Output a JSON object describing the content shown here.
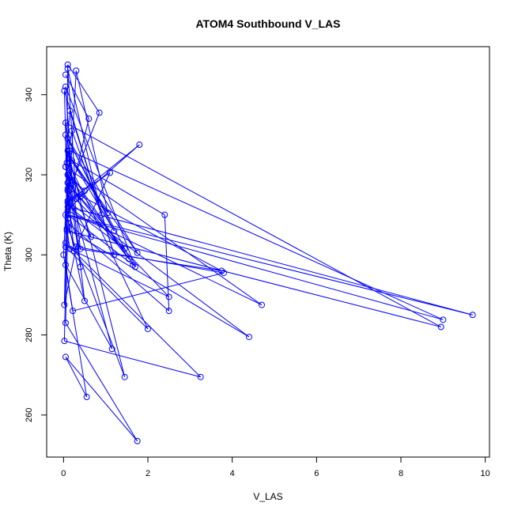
{
  "chart_data": {
    "type": "line",
    "title": "ATOM4 Southbound V_LAS",
    "xlabel": "V_LAS",
    "ylabel": "Theta (K)",
    "xlim": [
      -0.4,
      10.1
    ],
    "ylim": [
      249.5,
      352.0
    ],
    "xticks": [
      0,
      2,
      4,
      6,
      8,
      10
    ],
    "yticks": [
      260,
      280,
      300,
      320,
      340
    ],
    "grid": false,
    "line_and_points": true,
    "color": "#0000ff",
    "points": [
      {
        "x": 0.05,
        "y": 345.0
      },
      {
        "x": 0.6,
        "y": 334.0
      },
      {
        "x": 0.1,
        "y": 312.0
      },
      {
        "x": 0.02,
        "y": 341.0
      },
      {
        "x": 1.2,
        "y": 300.0
      },
      {
        "x": 0.15,
        "y": 336.0
      },
      {
        "x": 0.05,
        "y": 322.0
      },
      {
        "x": 0.3,
        "y": 314.0
      },
      {
        "x": 0.1,
        "y": 346.5
      },
      {
        "x": 0.9,
        "y": 310.0
      },
      {
        "x": 0.2,
        "y": 331.0
      },
      {
        "x": 0.08,
        "y": 323.0
      },
      {
        "x": 0.1,
        "y": 347.5
      },
      {
        "x": 0.85,
        "y": 335.5
      },
      {
        "x": 0.2,
        "y": 318.0
      },
      {
        "x": 0.05,
        "y": 342.0
      },
      {
        "x": 1.7,
        "y": 297.0
      },
      {
        "x": 0.1,
        "y": 320.0
      },
      {
        "x": 0.5,
        "y": 316.0
      },
      {
        "x": 0.05,
        "y": 310.0
      },
      {
        "x": 9.0,
        "y": 283.8
      },
      {
        "x": 0.15,
        "y": 326.0
      },
      {
        "x": 0.1,
        "y": 313.0
      },
      {
        "x": 1.8,
        "y": 327.5
      },
      {
        "x": 0.4,
        "y": 314.5
      },
      {
        "x": 0.12,
        "y": 324.0
      },
      {
        "x": 2.4,
        "y": 310.0
      },
      {
        "x": 2.5,
        "y": 286.0
      },
      {
        "x": 0.1,
        "y": 308.0
      },
      {
        "x": 0.3,
        "y": 346.0
      },
      {
        "x": 1.05,
        "y": 310.5
      },
      {
        "x": 0.2,
        "y": 323.5
      },
      {
        "x": 1.2,
        "y": 306.0
      },
      {
        "x": 0.1,
        "y": 329.0
      },
      {
        "x": 1.65,
        "y": 297.5
      },
      {
        "x": 0.1,
        "y": 310.0
      },
      {
        "x": 9.7,
        "y": 285.0
      },
      {
        "x": 0.12,
        "y": 312.0
      },
      {
        "x": 1.45,
        "y": 301.5
      },
      {
        "x": 0.1,
        "y": 318.0
      },
      {
        "x": 1.55,
        "y": 299.0
      },
      {
        "x": 0.05,
        "y": 322.0
      },
      {
        "x": 4.7,
        "y": 287.5
      },
      {
        "x": 0.1,
        "y": 311.0
      },
      {
        "x": 0.4,
        "y": 301.5
      },
      {
        "x": 0.05,
        "y": 333.0
      },
      {
        "x": 8.95,
        "y": 282.0
      },
      {
        "x": 0.08,
        "y": 306.0
      },
      {
        "x": 0.05,
        "y": 330.0
      },
      {
        "x": 1.75,
        "y": 300.5
      },
      {
        "x": 0.12,
        "y": 325.0
      },
      {
        "x": 0.2,
        "y": 318.5
      },
      {
        "x": 0.65,
        "y": 304.5
      },
      {
        "x": 0.1,
        "y": 313.5
      },
      {
        "x": 1.1,
        "y": 320.5
      },
      {
        "x": 0.25,
        "y": 301.0
      },
      {
        "x": 0.1,
        "y": 316.5
      },
      {
        "x": 3.75,
        "y": 296.0
      },
      {
        "x": 0.05,
        "y": 302.0
      },
      {
        "x": 2.0,
        "y": 281.5
      },
      {
        "x": 0.12,
        "y": 323.0
      },
      {
        "x": 0.5,
        "y": 288.5
      },
      {
        "x": 0.1,
        "y": 309.0
      },
      {
        "x": 0.15,
        "y": 313.0
      },
      {
        "x": 4.4,
        "y": 279.5
      },
      {
        "x": 0.08,
        "y": 306.5
      },
      {
        "x": 0.15,
        "y": 301.5
      },
      {
        "x": 2.5,
        "y": 289.5
      },
      {
        "x": 0.1,
        "y": 316.0
      },
      {
        "x": 0.05,
        "y": 303.0
      },
      {
        "x": 3.25,
        "y": 269.5
      },
      {
        "x": 0.02,
        "y": 278.5
      },
      {
        "x": 0.1,
        "y": 318.0
      },
      {
        "x": 1.15,
        "y": 276.5
      },
      {
        "x": 0.05,
        "y": 297.5
      },
      {
        "x": 0.22,
        "y": 286.0
      },
      {
        "x": 3.8,
        "y": 295.5
      },
      {
        "x": 0.3,
        "y": 302.0
      },
      {
        "x": 0.02,
        "y": 287.5
      },
      {
        "x": 0.1,
        "y": 326.0
      },
      {
        "x": 1.45,
        "y": 269.5
      },
      {
        "x": 0.1,
        "y": 307.0
      },
      {
        "x": 0.05,
        "y": 283.0
      },
      {
        "x": 1.75,
        "y": 253.5
      },
      {
        "x": 0.05,
        "y": 274.5
      },
      {
        "x": 0.55,
        "y": 264.5
      },
      {
        "x": 0.0,
        "y": 300.0
      },
      {
        "x": 0.1,
        "y": 320.0
      },
      {
        "x": 0.4,
        "y": 297.0
      }
    ]
  }
}
